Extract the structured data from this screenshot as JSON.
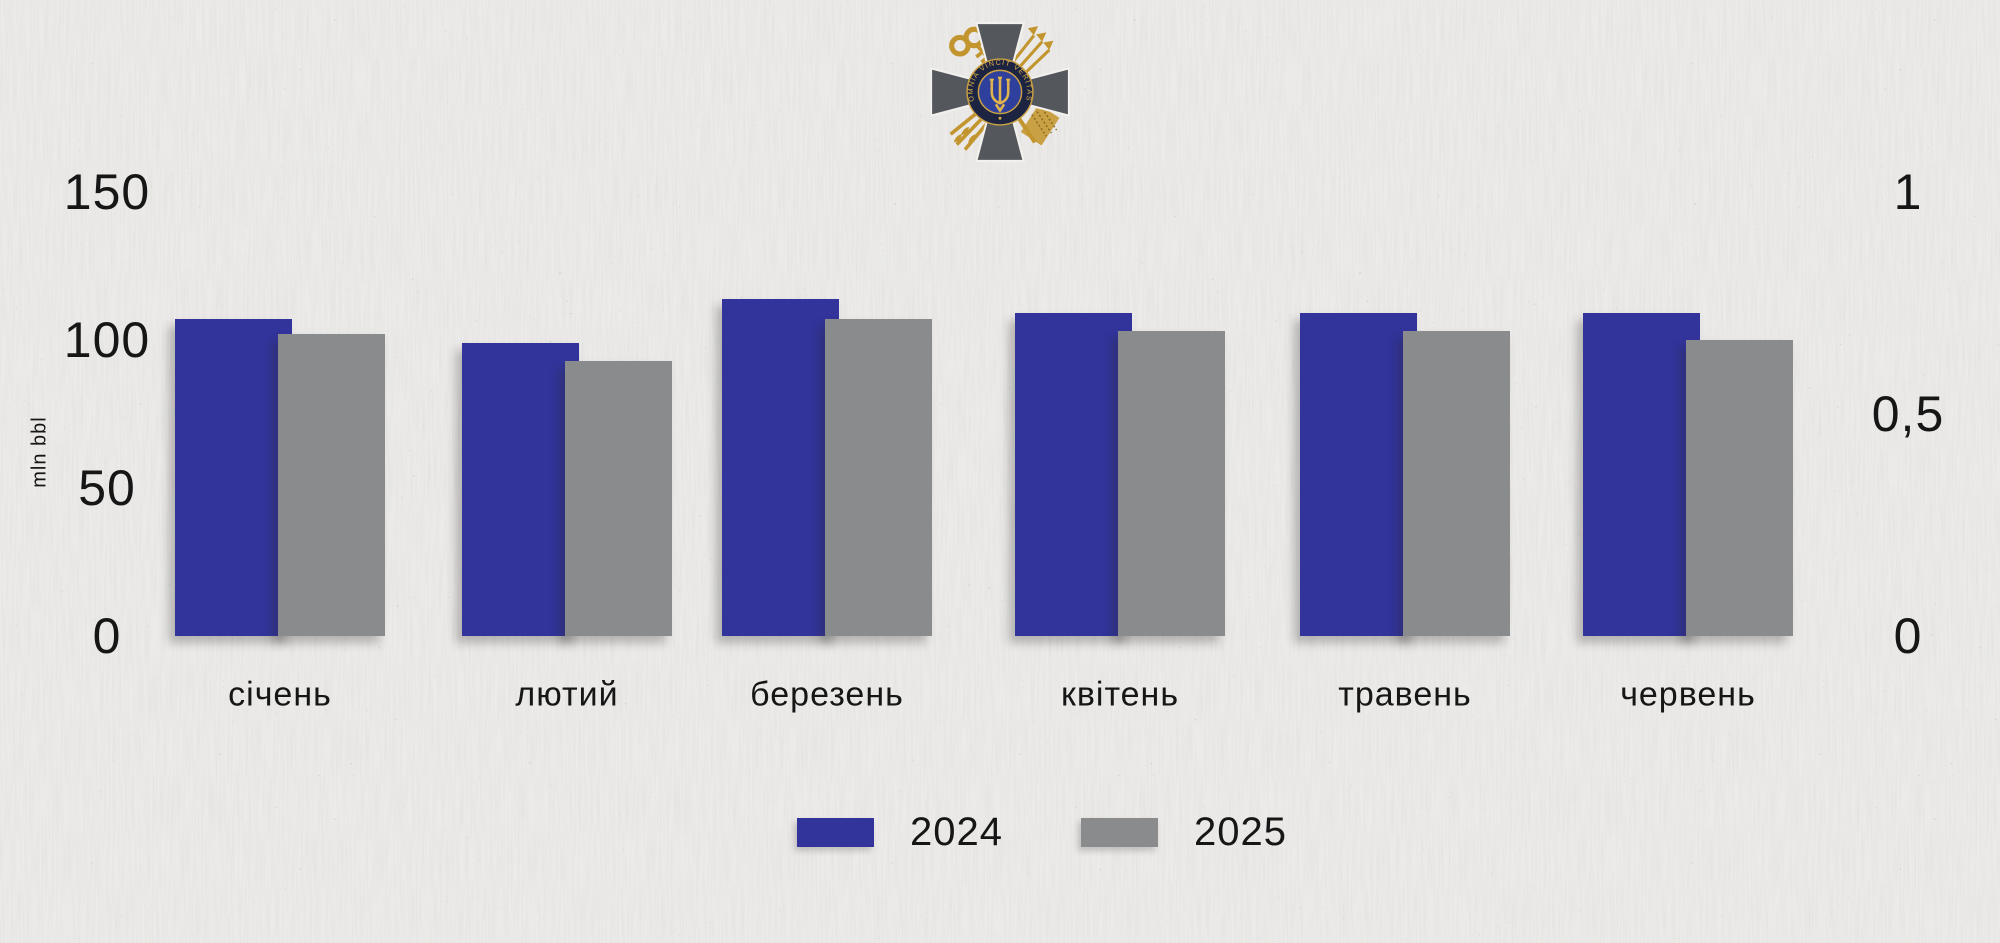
{
  "emblem": {
    "name": "foreign-intelligence-service-of-ukraine-emblem",
    "motto": "OMNIA VINCIT VERITAS",
    "colors": {
      "cross": "#54585c",
      "cross_outline": "#f2f1ee",
      "gold": "#c2952f",
      "ring": "#1d2442",
      "center_disc": "#2e3f9c"
    }
  },
  "legend": {
    "items": [
      {
        "label": "2024",
        "color": "#32349b"
      },
      {
        "label": "2025",
        "color": "#898b8c"
      }
    ]
  },
  "chart_data": {
    "type": "bar",
    "categories": [
      "січень",
      "лютий",
      "березень",
      "квітень",
      "травень",
      "червень"
    ],
    "series": [
      {
        "name": "2024",
        "color": "#32349b",
        "values": [
          107,
          99,
          114,
          109,
          109,
          109
        ]
      },
      {
        "name": "2025",
        "color": "#898b8c",
        "values": [
          102,
          93,
          107,
          103,
          103,
          100
        ]
      }
    ],
    "ylabel": "mln bbl",
    "left_axis": {
      "tick_labels": [
        "150",
        "100",
        "50",
        "0"
      ],
      "tick_values": [
        150,
        100,
        50,
        0
      ],
      "range": [
        0,
        150
      ]
    },
    "right_axis": {
      "tick_labels": [
        "1",
        "0,5",
        "0"
      ],
      "tick_values": [
        1,
        0.5,
        0
      ],
      "range": [
        0,
        1
      ]
    },
    "grid": false,
    "legend_position": "bottom"
  }
}
